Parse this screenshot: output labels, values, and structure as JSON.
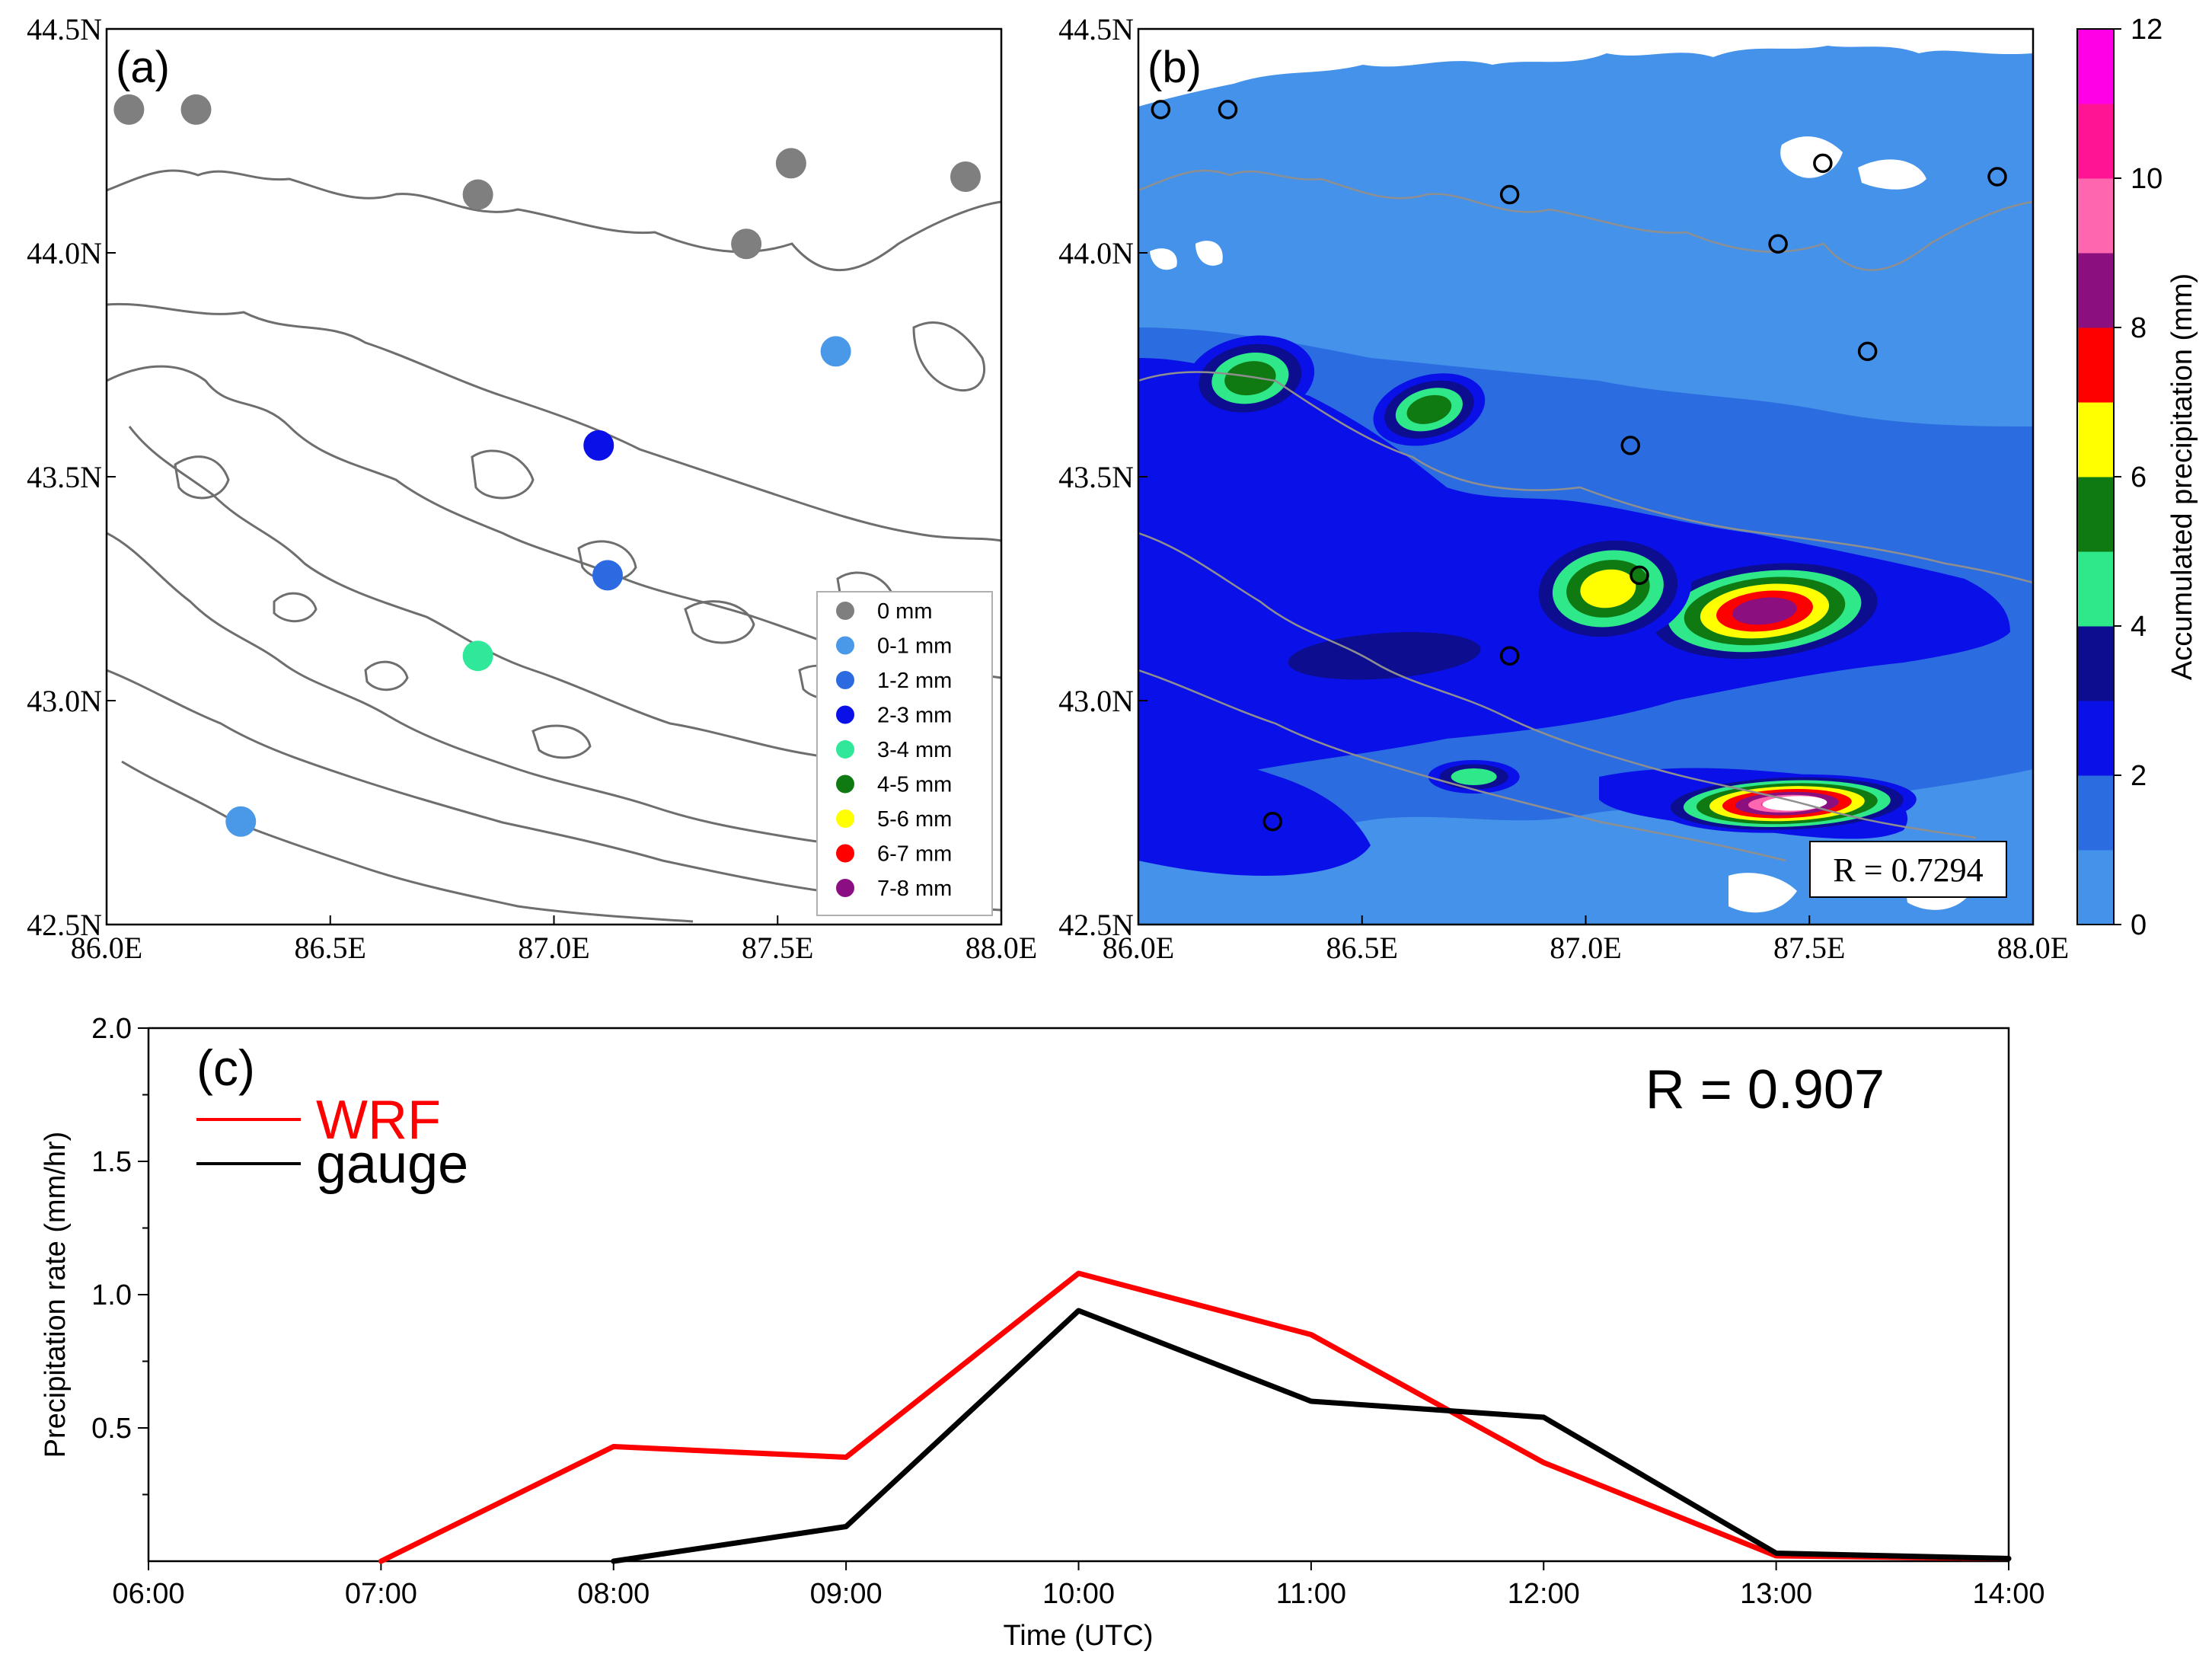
{
  "colors": {
    "contour": "#6e6e6e",
    "contour_b": "#8f8f8f",
    "wrf": "#ff0000",
    "gauge": "#000000",
    "map_bg_b": "#4592ea"
  },
  "chart_data": [
    {
      "panel": "(a)",
      "type": "scatter",
      "xlabel": "",
      "ylabel": "",
      "xlim": [
        86.0,
        88.0
      ],
      "ylim": [
        42.5,
        44.5
      ],
      "x_ticks": [
        "86.0E",
        "86.5E",
        "87.0E",
        "87.5E",
        "88.0E"
      ],
      "y_ticks": [
        "42.5N",
        "43.0N",
        "43.5N",
        "44.0N",
        "44.5N"
      ],
      "legend": {
        "placement": "lower-right",
        "entries": [
          {
            "label": "0 mm",
            "color": "#7f7f7f"
          },
          {
            "label": "0-1 mm",
            "color": "#4a98e8"
          },
          {
            "label": "1-2 mm",
            "color": "#2b6ae0"
          },
          {
            "label": "2-3 mm",
            "color": "#0a10e8"
          },
          {
            "label": "3-4 mm",
            "color": "#2fe89a"
          },
          {
            "label": "4-5 mm",
            "color": "#0f7a12"
          },
          {
            "label": "5-6 mm",
            "color": "#ffff00"
          },
          {
            "label": "6-7 mm",
            "color": "#ff0000"
          },
          {
            "label": "7-8 mm",
            "color": "#8b0f82"
          }
        ]
      },
      "stations": [
        {
          "lon": 86.05,
          "lat": 44.32,
          "cls": 0
        },
        {
          "lon": 86.2,
          "lat": 44.32,
          "cls": 0
        },
        {
          "lon": 86.83,
          "lat": 44.13,
          "cls": 0
        },
        {
          "lon": 87.53,
          "lat": 44.2,
          "cls": 0
        },
        {
          "lon": 87.92,
          "lat": 44.17,
          "cls": 0
        },
        {
          "lon": 87.43,
          "lat": 44.02,
          "cls": 0
        },
        {
          "lon": 87.63,
          "lat": 43.78,
          "cls": 1
        },
        {
          "lon": 87.1,
          "lat": 43.57,
          "cls": 3
        },
        {
          "lon": 87.12,
          "lat": 43.28,
          "cls": 2
        },
        {
          "lon": 86.83,
          "lat": 43.1,
          "cls": 4
        },
        {
          "lon": 86.3,
          "lat": 42.73,
          "cls": 1
        }
      ]
    },
    {
      "panel": "(b)",
      "type": "heatmap",
      "xlabel": "",
      "ylabel": "",
      "xlim": [
        86.0,
        88.0
      ],
      "ylim": [
        42.5,
        44.5
      ],
      "x_ticks": [
        "86.0E",
        "86.5E",
        "87.0E",
        "87.5E",
        "88.0E"
      ],
      "y_ticks": [
        "42.5N",
        "43.0N",
        "43.5N",
        "44.0N",
        "44.5N"
      ],
      "annotation": "R = 0.7294",
      "colorbar": {
        "label": "Accumulated precipitation (mm)",
        "ticks": [
          "0",
          "2",
          "4",
          "6",
          "8",
          "10",
          "12"
        ],
        "levels": [
          0,
          1,
          2,
          3,
          4,
          5,
          6,
          7,
          8,
          9,
          10,
          11,
          12
        ],
        "colors": [
          "#4592ea",
          "#2b6de0",
          "#0a10e8",
          "#0d0d8f",
          "#2fe88a",
          "#0f7a12",
          "#ffff00",
          "#ff0000",
          "#8b0f7f",
          "#ff66b0",
          "#ff1493",
          "#ff00e6",
          "#ff1a3c"
        ]
      },
      "stations": [
        {
          "lon": 86.05,
          "lat": 44.32
        },
        {
          "lon": 86.2,
          "lat": 44.32
        },
        {
          "lon": 86.83,
          "lat": 44.13
        },
        {
          "lon": 87.53,
          "lat": 44.2
        },
        {
          "lon": 87.92,
          "lat": 44.17
        },
        {
          "lon": 87.43,
          "lat": 44.02
        },
        {
          "lon": 87.63,
          "lat": 43.78
        },
        {
          "lon": 87.1,
          "lat": 43.57
        },
        {
          "lon": 87.12,
          "lat": 43.28
        },
        {
          "lon": 86.83,
          "lat": 43.1
        },
        {
          "lon": 86.3,
          "lat": 42.73
        }
      ],
      "blobs": [
        {
          "lon": 87.4,
          "lat": 43.2,
          "value": 8
        },
        {
          "lon": 87.45,
          "lat": 42.77,
          "value": 10
        },
        {
          "lon": 86.25,
          "lat": 43.72,
          "value": 5
        },
        {
          "lon": 86.65,
          "lat": 43.65,
          "value": 5
        },
        {
          "lon": 87.05,
          "lat": 43.25,
          "value": 6
        },
        {
          "lon": 86.55,
          "lat": 43.1,
          "value": 3
        },
        {
          "lon": 86.75,
          "lat": 42.83,
          "value": 4
        }
      ]
    },
    {
      "panel": "(c)",
      "type": "line",
      "xlabel": "Time (UTC)",
      "ylabel": "Precipitation rate (mm/hr)",
      "categories": [
        "06:00",
        "07:00",
        "08:00",
        "09:00",
        "10:00",
        "11:00",
        "12:00",
        "13:00",
        "14:00"
      ],
      "y_ticks": [
        "0.5",
        "1.0",
        "1.5",
        "2.0"
      ],
      "ylim": [
        0,
        2.0
      ],
      "annotation": "R = 0.907",
      "legend_placement": "top-left",
      "series": [
        {
          "name": "WRF",
          "color": "#ff0000",
          "values": [
            0,
            0,
            0.43,
            0.39,
            1.08,
            0.85,
            0.37,
            0.02,
            0.01
          ]
        },
        {
          "name": "gauge",
          "color": "#000000",
          "values": [
            0,
            0,
            0,
            0.13,
            0.94,
            0.6,
            0.54,
            0.03,
            0.01
          ]
        }
      ]
    }
  ]
}
